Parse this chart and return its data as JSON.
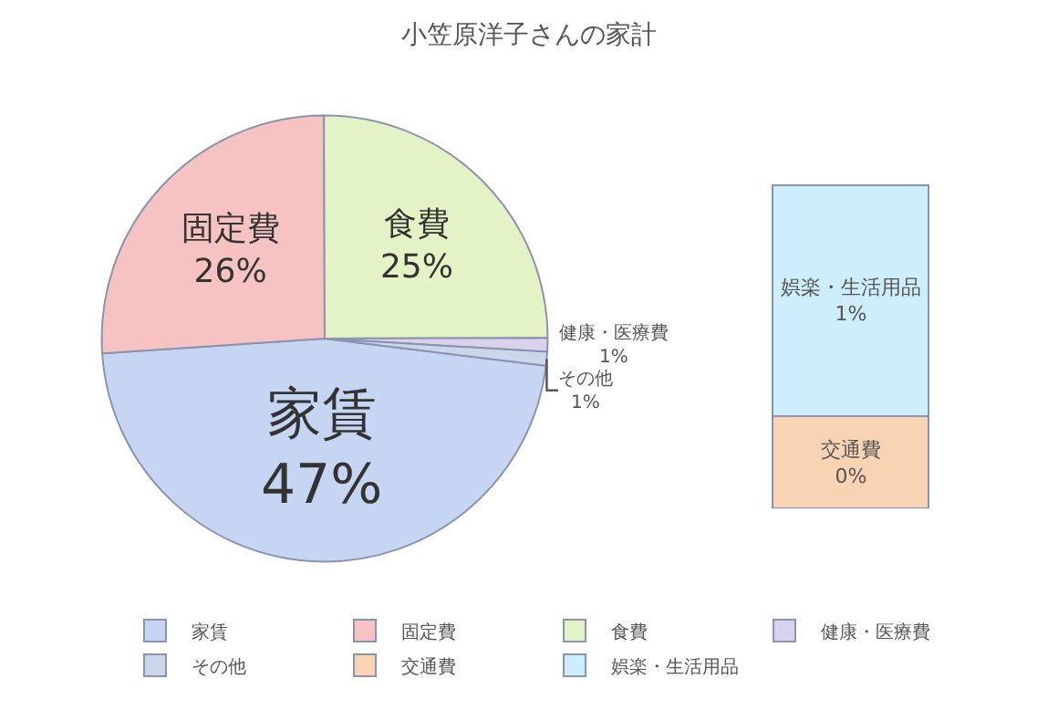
{
  "chart_data": [
    {
      "type": "pie",
      "title": "小笠原洋子さんの家計",
      "categories": [
        "家賃",
        "固定費",
        "食費",
        "健康・医療費",
        "その他"
      ],
      "values": [
        47,
        26,
        25,
        1,
        1
      ],
      "colors": [
        "#c6d5f2",
        "#f6c2c2",
        "#e4f3c6",
        "#d8d2ec",
        "#ccd6ea"
      ],
      "value_labels": [
        "47%",
        "26%",
        "25%",
        "1%",
        "1%"
      ],
      "legend": "bottom"
    },
    {
      "type": "bar",
      "stacked": true,
      "categories": [
        null
      ],
      "legend": "bottom",
      "series": [
        {
          "name": "交通費",
          "color": "#f8d3b4",
          "values": [
            0.4
          ],
          "value_labels": [
            "0%"
          ]
        },
        {
          "name": "娯楽・生活用品",
          "color": "#cdeefa",
          "values": [
            1
          ],
          "value_labels": [
            "1%"
          ]
        }
      ]
    }
  ]
}
